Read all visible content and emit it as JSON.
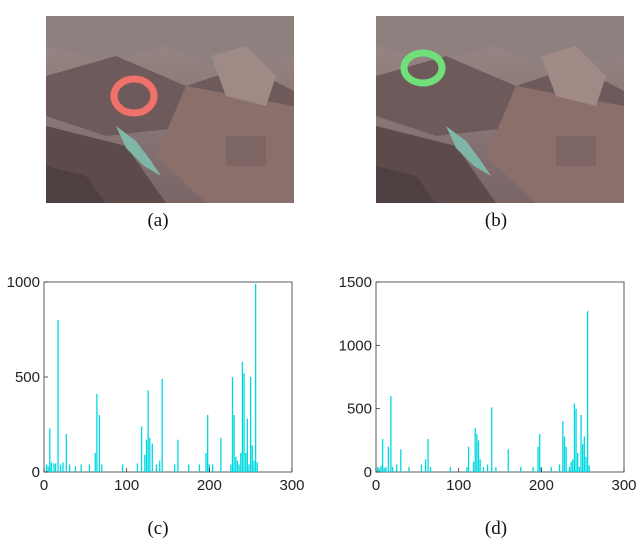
{
  "panels": [
    {
      "id": "a",
      "caption": "(a)",
      "image": "canyon-photo",
      "overlay_color": "#f0706a",
      "overlay_label": "red-ring-region"
    },
    {
      "id": "b",
      "caption": "(b)",
      "image": "canyon-photo",
      "overlay_color": "#6fe07a",
      "overlay_label": "green-ring-region"
    }
  ],
  "chart_data": [
    {
      "type": "bar",
      "caption": "(c)",
      "color": "#00d8e0",
      "xlim": [
        0,
        300
      ],
      "ylim": [
        0,
        1000
      ],
      "xticks": [
        "0",
        "100",
        "200",
        "300"
      ],
      "yticks": [
        "0",
        "500",
        "1000"
      ],
      "x": [
        3,
        5,
        7,
        9,
        12,
        14,
        17,
        20,
        23,
        27,
        31,
        38,
        45,
        55,
        62,
        64,
        67,
        70,
        95,
        113,
        118,
        122,
        124,
        126,
        128,
        131,
        136,
        140,
        143,
        158,
        162,
        175,
        188,
        196,
        198,
        200,
        204,
        214,
        226,
        228,
        230,
        232,
        234,
        236,
        238,
        240,
        242,
        244,
        246,
        248,
        250,
        252,
        254,
        256,
        258
      ],
      "y": [
        40,
        30,
        230,
        50,
        45,
        45,
        800,
        40,
        50,
        200,
        40,
        30,
        40,
        40,
        100,
        410,
        300,
        40,
        40,
        45,
        240,
        90,
        170,
        430,
        180,
        150,
        40,
        60,
        490,
        40,
        170,
        40,
        40,
        100,
        300,
        40,
        40,
        180,
        40,
        500,
        300,
        80,
        60,
        40,
        100,
        580,
        520,
        100,
        280,
        40,
        500,
        140,
        60,
        990,
        50
      ]
    },
    {
      "type": "bar",
      "caption": "(d)",
      "color": "#00d8e0",
      "xlim": [
        0,
        300
      ],
      "ylim": [
        0,
        1500
      ],
      "xticks": [
        "0",
        "100",
        "200",
        "300"
      ],
      "yticks": [
        "0",
        "500",
        "1000",
        "1500"
      ],
      "x": [
        2,
        4,
        6,
        8,
        10,
        12,
        15,
        18,
        20,
        25,
        30,
        40,
        55,
        60,
        63,
        66,
        90,
        110,
        112,
        118,
        120,
        122,
        124,
        126,
        130,
        135,
        140,
        145,
        160,
        175,
        190,
        196,
        198,
        200,
        212,
        222,
        226,
        228,
        230,
        234,
        236,
        238,
        240,
        242,
        244,
        246,
        248,
        250,
        252,
        254,
        256,
        258
      ],
      "y": [
        40,
        30,
        50,
        260,
        30,
        40,
        200,
        600,
        40,
        60,
        180,
        40,
        60,
        100,
        260,
        40,
        40,
        40,
        200,
        80,
        350,
        300,
        250,
        100,
        40,
        60,
        510,
        40,
        180,
        40,
        40,
        200,
        300,
        40,
        40,
        60,
        400,
        280,
        200,
        40,
        80,
        100,
        540,
        500,
        150,
        40,
        450,
        220,
        280,
        120,
        1270,
        50
      ]
    }
  ]
}
